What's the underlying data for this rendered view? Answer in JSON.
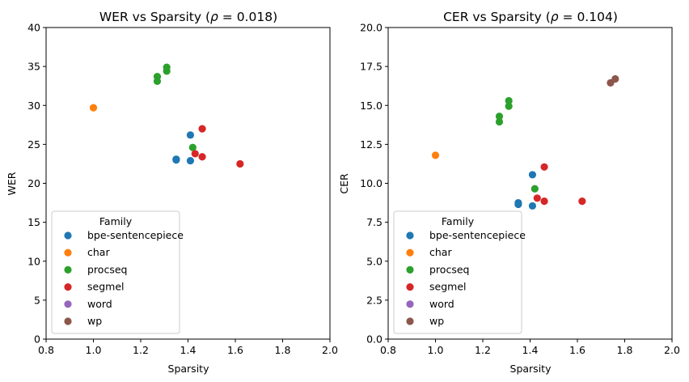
{
  "family_colors": {
    "bpe-sentencepiece": "#1f77b4",
    "char": "#ff7f0e",
    "procseq": "#2ca02c",
    "segmel": "#d62728",
    "word": "#9467bd",
    "wp": "#8c564b"
  },
  "chart_data": [
    {
      "type": "scatter",
      "title": "WER vs Sparsity (ρ = 0.018)",
      "title_main": "WER vs Sparsity (",
      "title_rho": "ρ",
      "title_rest": " = 0.018)",
      "xlabel": "Sparsity",
      "ylabel": "WER",
      "xlim": [
        0.8,
        2.0
      ],
      "ylim": [
        0,
        40
      ],
      "xticks": [
        0.8,
        1.0,
        1.2,
        1.4,
        1.6,
        1.8,
        2.0
      ],
      "xtick_labels": [
        "0.8",
        "1.0",
        "1.2",
        "1.4",
        "1.6",
        "1.8",
        "2.0"
      ],
      "yticks": [
        0,
        5,
        10,
        15,
        20,
        25,
        30,
        35,
        40
      ],
      "ytick_labels": [
        "0",
        "5",
        "10",
        "15",
        "20",
        "25",
        "30",
        "35",
        "40"
      ],
      "legend": {
        "title": "Family",
        "placement": "lower-left",
        "entries": [
          "bpe-sentencepiece",
          "char",
          "procseq",
          "segmel",
          "word",
          "wp"
        ]
      },
      "series": [
        {
          "name": "bpe-sentencepiece",
          "x": [
            1.41,
            1.35,
            1.35,
            1.41
          ],
          "y": [
            26.2,
            23.0,
            23.1,
            22.9
          ]
        },
        {
          "name": "char",
          "x": [
            1.0
          ],
          "y": [
            29.7
          ]
        },
        {
          "name": "procseq",
          "x": [
            1.31,
            1.31,
            1.27,
            1.27,
            1.42
          ],
          "y": [
            34.9,
            34.4,
            33.7,
            33.1,
            24.6
          ]
        },
        {
          "name": "segmel",
          "x": [
            1.46,
            1.43,
            1.46,
            1.62
          ],
          "y": [
            27.0,
            23.8,
            23.4,
            22.5
          ]
        },
        {
          "name": "word",
          "x": [],
          "y": []
        },
        {
          "name": "wp",
          "x": [],
          "y": []
        }
      ]
    },
    {
      "type": "scatter",
      "title": "CER vs Sparsity (ρ = 0.104)",
      "title_main": "CER vs Sparsity (",
      "title_rho": "ρ",
      "title_rest": " = 0.104)",
      "xlabel": "Sparsity",
      "ylabel": "CER",
      "xlim": [
        0.8,
        2.0
      ],
      "ylim": [
        0,
        20
      ],
      "xticks": [
        0.8,
        1.0,
        1.2,
        1.4,
        1.6,
        1.8,
        2.0
      ],
      "xtick_labels": [
        "0.8",
        "1.0",
        "1.2",
        "1.4",
        "1.6",
        "1.8",
        "2.0"
      ],
      "yticks": [
        0,
        2.5,
        5,
        7.5,
        10,
        12.5,
        15,
        17.5,
        20
      ],
      "ytick_labels": [
        "0.0",
        "2.5",
        "5.0",
        "7.5",
        "10.0",
        "12.5",
        "15.0",
        "17.5",
        "20.0"
      ],
      "legend": {
        "title": "Family",
        "placement": "lower-left",
        "entries": [
          "bpe-sentencepiece",
          "char",
          "procseq",
          "segmel",
          "word",
          "wp"
        ]
      },
      "series": [
        {
          "name": "bpe-sentencepiece",
          "x": [
            1.41,
            1.35,
            1.35,
            1.41
          ],
          "y": [
            10.55,
            8.75,
            8.65,
            8.55
          ]
        },
        {
          "name": "char",
          "x": [
            1.0
          ],
          "y": [
            11.8
          ]
        },
        {
          "name": "procseq",
          "x": [
            1.31,
            1.31,
            1.27,
            1.27,
            1.42
          ],
          "y": [
            15.3,
            14.95,
            14.3,
            13.95,
            9.65
          ]
        },
        {
          "name": "segmel",
          "x": [
            1.46,
            1.43,
            1.46,
            1.62
          ],
          "y": [
            11.05,
            9.05,
            8.85,
            8.85
          ]
        },
        {
          "name": "word",
          "x": [],
          "y": []
        },
        {
          "name": "wp",
          "x": [
            1.76,
            1.74
          ],
          "y": [
            16.7,
            16.45
          ]
        }
      ]
    }
  ]
}
